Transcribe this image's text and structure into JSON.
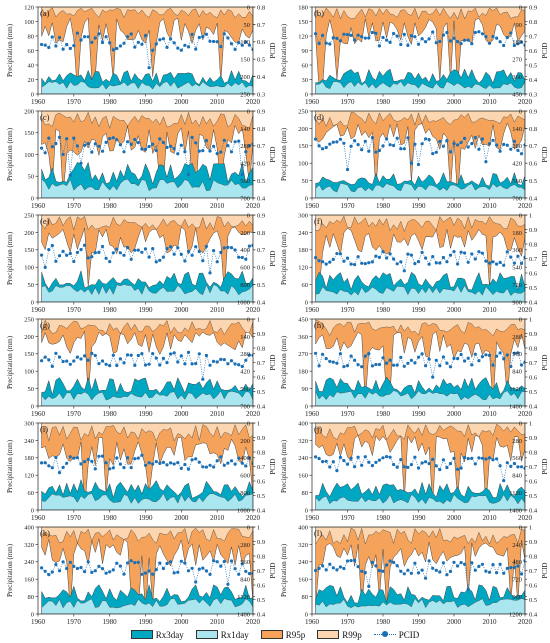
{
  "colors": {
    "rx3day": "#00a7c3",
    "rx1day": "#a9e6ef",
    "r95p": "#f5a25a",
    "r99p": "#fbd6b0",
    "pcid": "#1a6fb5",
    "edge": "#444444"
  },
  "legend": [
    {
      "key": "rx3day",
      "label": "Rx3day",
      "kind": "swatch",
      "color": "#00a7c3"
    },
    {
      "key": "rx1day",
      "label": "Rx1day",
      "kind": "swatch",
      "color": "#a9e6ef"
    },
    {
      "key": "r95p",
      "label": "R95p",
      "kind": "swatch",
      "color": "#f5a25a"
    },
    {
      "key": "r99p",
      "label": "R99p",
      "kind": "swatch",
      "color": "#fbd6b0"
    },
    {
      "key": "pcid",
      "label": "PCID",
      "kind": "line-marker",
      "color": "#1a6fb5"
    }
  ],
  "chart_data": [
    {
      "type": "area",
      "panel_label": "(a)",
      "ylabel": "Precipitation (mm)",
      "y2label": "PCID",
      "x_ticks": [
        1960,
        1970,
        1980,
        1990,
        2000,
        2010,
        2020
      ],
      "xlim": [
        1960,
        2020
      ],
      "left_ylim": [
        0,
        120
      ],
      "left_ticks": [
        0,
        20,
        40,
        60,
        80,
        100,
        120
      ],
      "right_top_ylim": [
        0,
        250
      ],
      "right_top_ticks": [
        0,
        50,
        100,
        150,
        200,
        250
      ],
      "pcid_ylim": [
        0.3,
        0.8
      ],
      "pcid_ticks": [
        0.3,
        0.4,
        0.5,
        0.6,
        0.7,
        0.8
      ],
      "rx1day_mean": 12,
      "rx3day_mean": 22,
      "r95p_mean": 70,
      "r99p_mean": 20,
      "pcid_mean": 0.6
    },
    {
      "type": "area",
      "panel_label": "(b)",
      "ylabel": "Precipitation (mm)",
      "y2label": "PCID",
      "x_ticks": [
        1960,
        1970,
        1980,
        1990,
        2000,
        2010,
        2020
      ],
      "xlim": [
        1960,
        2020
      ],
      "left_ylim": [
        0,
        180
      ],
      "left_ticks": [
        0,
        30,
        60,
        90,
        120,
        150,
        180
      ],
      "right_top_ylim": [
        0,
        450
      ],
      "right_top_ticks": [
        0,
        90,
        180,
        270,
        360,
        450
      ],
      "pcid_ylim": [
        0.3,
        0.9
      ],
      "pcid_ticks": [
        0.3,
        0.4,
        0.5,
        0.6,
        0.7,
        0.8,
        0.9
      ],
      "rx1day_mean": 18,
      "rx3day_mean": 35,
      "r95p_mean": 130,
      "r99p_mean": 40,
      "pcid_mean": 0.68
    },
    {
      "type": "area",
      "panel_label": "(c)",
      "ylabel": "Precipitation (mm)",
      "y2label": "PCID",
      "x_ticks": [
        1960,
        1970,
        1980,
        1990,
        2000,
        2010,
        2020
      ],
      "xlim": [
        1960,
        2020
      ],
      "left_ylim": [
        0,
        200
      ],
      "left_ticks": [
        0,
        50,
        100,
        150,
        200
      ],
      "right_top_ylim": [
        0,
        700
      ],
      "right_top_ticks": [
        0,
        140,
        280,
        420,
        560,
        700
      ],
      "pcid_ylim": [
        0.4,
        0.9
      ],
      "pcid_ticks": [
        0.4,
        0.5,
        0.6,
        0.7,
        0.8,
        0.9
      ],
      "rx1day_mean": 30,
      "rx3day_mean": 55,
      "r95p_mean": 240,
      "r99p_mean": 90,
      "pcid_mean": 0.7
    },
    {
      "type": "area",
      "panel_label": "(d)",
      "ylabel": "Precipitation (mm)",
      "y2label": "PCID",
      "x_ticks": [
        1960,
        1970,
        1980,
        1990,
        2000,
        2010,
        2020
      ],
      "xlim": [
        1960,
        2020
      ],
      "left_ylim": [
        0,
        250
      ],
      "left_ticks": [
        0,
        50,
        100,
        150,
        200,
        250
      ],
      "right_top_ylim": [
        0,
        700
      ],
      "right_top_ticks": [
        0,
        140,
        280,
        420,
        560,
        700
      ],
      "pcid_ylim": [
        0.4,
        0.9
      ],
      "pcid_ticks": [
        0.4,
        0.5,
        0.6,
        0.7,
        0.8,
        0.9
      ],
      "rx1day_mean": 30,
      "rx3day_mean": 50,
      "r95p_mean": 210,
      "r99p_mean": 80,
      "pcid_mean": 0.7
    },
    {
      "type": "area",
      "panel_label": "(e)",
      "ylabel": "Precipitation (mm)",
      "y2label": "PCID",
      "x_ticks": [
        1960,
        1970,
        1980,
        1990,
        2000,
        2010,
        2020
      ],
      "xlim": [
        1960,
        2020
      ],
      "left_ylim": [
        0,
        250
      ],
      "left_ticks": [
        0,
        50,
        100,
        150,
        200,
        250
      ],
      "right_top_ylim": [
        0,
        1000
      ],
      "right_top_ticks": [
        0,
        200,
        400,
        600,
        800,
        1000
      ],
      "pcid_ylim": [
        0.4,
        0.9
      ],
      "pcid_ticks": [
        0.4,
        0.5,
        0.6,
        0.7,
        0.8,
        0.9
      ],
      "rx1day_mean": 35,
      "rx3day_mean": 60,
      "r95p_mean": 300,
      "r99p_mean": 110,
      "pcid_mean": 0.68
    },
    {
      "type": "area",
      "panel_label": "(f)",
      "ylabel": "Precipitation (mm)",
      "y2label": "PCID",
      "x_ticks": [
        1960,
        1970,
        1980,
        1990,
        2000,
        2010,
        2020
      ],
      "xlim": [
        1960,
        2020
      ],
      "left_ylim": [
        0,
        300
      ],
      "left_ticks": [
        0,
        60,
        120,
        180,
        240,
        300
      ],
      "right_top_ylim": [
        0,
        900
      ],
      "right_top_ticks": [
        0,
        180,
        360,
        540,
        720,
        900
      ],
      "pcid_ylim": [
        0.4,
        1.0
      ],
      "pcid_ticks": [
        0.4,
        0.5,
        0.6,
        0.7,
        0.8,
        0.9,
        1.0
      ],
      "rx1day_mean": 40,
      "rx3day_mean": 70,
      "r95p_mean": 290,
      "r99p_mean": 110,
      "pcid_mean": 0.7
    },
    {
      "type": "area",
      "panel_label": "(g)",
      "ylabel": "Precipitation (mm)",
      "y2label": "PCID",
      "x_ticks": [
        1960,
        1970,
        1980,
        1990,
        2000,
        2010,
        2020
      ],
      "xlim": [
        1960,
        2020
      ],
      "left_ylim": [
        0,
        250
      ],
      "left_ticks": [
        0,
        50,
        100,
        150,
        200,
        250
      ],
      "right_top_ylim": [
        0,
        700
      ],
      "right_top_ticks": [
        0,
        140,
        280,
        420,
        560,
        700
      ],
      "pcid_ylim": [
        0.4,
        1.0
      ],
      "pcid_ticks": [
        0.4,
        0.5,
        0.6,
        0.7,
        0.8,
        0.9,
        1.0
      ],
      "rx1day_mean": 30,
      "rx3day_mean": 55,
      "r95p_mean": 200,
      "r99p_mean": 80,
      "pcid_mean": 0.72
    },
    {
      "type": "area",
      "panel_label": "(h)",
      "ylabel": "Precipitation (mm)",
      "y2label": "PCID",
      "x_ticks": [
        1960,
        1970,
        1980,
        1990,
        2000,
        2010,
        2020
      ],
      "xlim": [
        1960,
        2020
      ],
      "left_ylim": [
        0,
        450
      ],
      "left_ticks": [
        0,
        90,
        180,
        270,
        360,
        450
      ],
      "right_top_ylim": [
        0,
        1400
      ],
      "right_top_ticks": [
        0,
        280,
        560,
        840,
        1120,
        1400
      ],
      "pcid_ylim": [
        0.4,
        1.0
      ],
      "pcid_ticks": [
        0.4,
        0.5,
        0.6,
        0.7,
        0.8,
        0.9,
        1.0
      ],
      "rx1day_mean": 55,
      "rx3day_mean": 100,
      "r95p_mean": 440,
      "r99p_mean": 170,
      "pcid_mean": 0.72
    },
    {
      "type": "area",
      "panel_label": "(i)",
      "ylabel": "Precipitation (mm)",
      "y2label": "PCID",
      "x_ticks": [
        1960,
        1970,
        1980,
        1990,
        2000,
        2010,
        2020
      ],
      "xlim": [
        1960,
        2020
      ],
      "left_ylim": [
        0,
        300
      ],
      "left_ticks": [
        0,
        60,
        120,
        180,
        240,
        300
      ],
      "right_top_ylim": [
        0,
        1000
      ],
      "right_top_ticks": [
        0,
        200,
        400,
        600,
        800,
        1000
      ],
      "pcid_ylim": [
        0.4,
        1.0
      ],
      "pcid_ticks": [
        0.4,
        0.5,
        0.6,
        0.7,
        0.8,
        0.9,
        1.0
      ],
      "rx1day_mean": 40,
      "rx3day_mean": 70,
      "r95p_mean": 330,
      "r99p_mean": 130,
      "pcid_mean": 0.73
    },
    {
      "type": "area",
      "panel_label": "(j)",
      "ylabel": "Precipitation (mm)",
      "y2label": "PCID",
      "x_ticks": [
        1960,
        1970,
        1980,
        1990,
        2000,
        2010,
        2020
      ],
      "xlim": [
        1960,
        2020
      ],
      "left_ylim": [
        0,
        400
      ],
      "left_ticks": [
        0,
        80,
        160,
        240,
        320,
        400
      ],
      "right_top_ylim": [
        0,
        1400
      ],
      "right_top_ticks": [
        0,
        280,
        560,
        840,
        1120,
        1400
      ],
      "pcid_ylim": [
        0.4,
        1.0
      ],
      "pcid_ticks": [
        0.4,
        0.5,
        0.6,
        0.7,
        0.8,
        0.9,
        1.0
      ],
      "rx1day_mean": 50,
      "rx3day_mean": 85,
      "r95p_mean": 420,
      "r99p_mean": 170,
      "pcid_mean": 0.72
    },
    {
      "type": "area",
      "panel_label": "(k)",
      "ylabel": "Precipitation (mm)",
      "y2label": "PCID",
      "x_ticks": [
        1960,
        1970,
        1980,
        1990,
        2000,
        2010,
        2020
      ],
      "xlim": [
        1960,
        2020
      ],
      "left_ylim": [
        0,
        400
      ],
      "left_ticks": [
        0,
        80,
        160,
        240,
        320,
        400
      ],
      "right_top_ylim": [
        0,
        1400
      ],
      "right_top_ticks": [
        0,
        280,
        560,
        840,
        1120,
        1400
      ],
      "pcid_ylim": [
        0.4,
        1.0
      ],
      "pcid_ticks": [
        0.4,
        0.5,
        0.6,
        0.7,
        0.8,
        0.9,
        1.0
      ],
      "rx1day_mean": 50,
      "rx3day_mean": 90,
      "r95p_mean": 420,
      "r99p_mean": 170,
      "pcid_mean": 0.72
    },
    {
      "type": "area",
      "panel_label": "(l)",
      "ylabel": "Precipitation (mm)",
      "y2label": "PCID",
      "x_ticks": [
        1960,
        1970,
        1980,
        1990,
        2000,
        2010,
        2020
      ],
      "xlim": [
        1960,
        2020
      ],
      "left_ylim": [
        0,
        400
      ],
      "left_ticks": [
        0,
        80,
        160,
        240,
        320,
        400
      ],
      "right_top_ylim": [
        0,
        1200
      ],
      "right_top_ticks": [
        0,
        240,
        480,
        720,
        960,
        1200
      ],
      "pcid_ylim": [
        0.4,
        1.0
      ],
      "pcid_ticks": [
        0.4,
        0.5,
        0.6,
        0.7,
        0.8,
        0.9,
        1.0
      ],
      "rx1day_mean": 50,
      "rx3day_mean": 90,
      "r95p_mean": 380,
      "r99p_mean": 150,
      "pcid_mean": 0.72
    }
  ]
}
